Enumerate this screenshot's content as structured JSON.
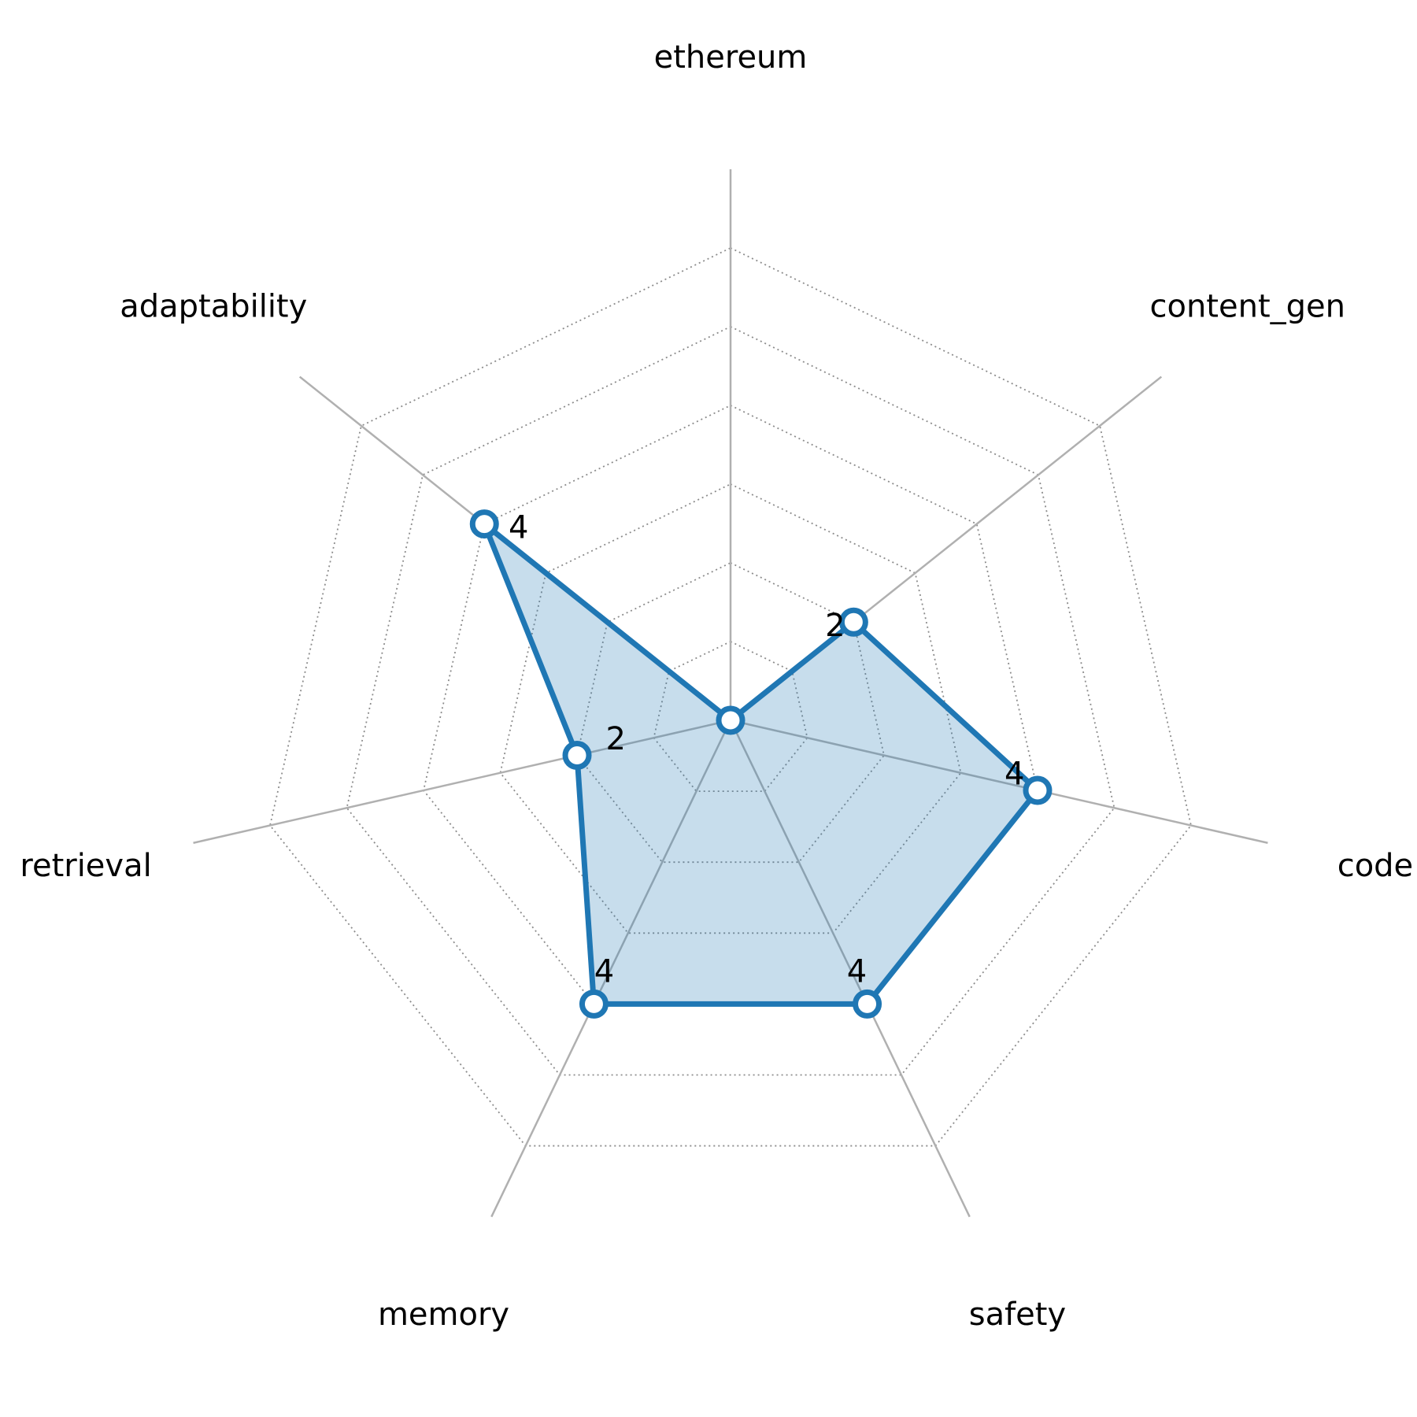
{
  "chart_data": {
    "type": "radar",
    "categories": [
      "ethereum",
      "content_gen",
      "code",
      "safety",
      "memory",
      "retrieval",
      "adaptability"
    ],
    "series": [
      {
        "values": [
          0,
          2,
          4,
          4,
          4,
          2,
          4
        ],
        "color": "#1f77b4"
      }
    ],
    "rlim": [
      0,
      6
    ],
    "rings": [
      1,
      2,
      3,
      4,
      5,
      6
    ],
    "grid": true,
    "legend": "none",
    "value_labels_shown": true,
    "value_label_hide_zero": true
  }
}
